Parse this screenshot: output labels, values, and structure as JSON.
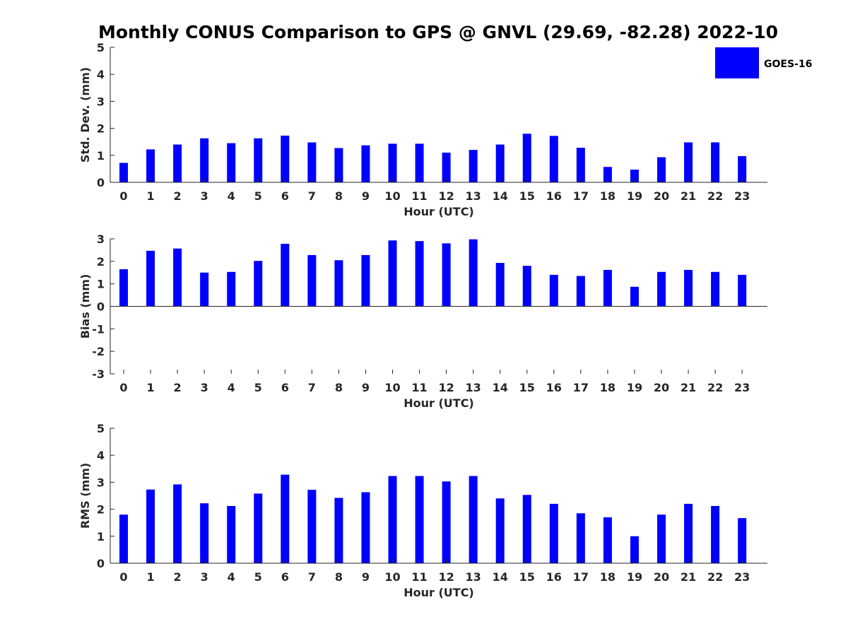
{
  "title": "Monthly CONUS Comparison to GPS @ GNVL (29.69, -82.28) 2022-10",
  "legend": {
    "label": "GOES-16",
    "color": "#0000ff",
    "placement": "top-right"
  },
  "chart_data": [
    {
      "type": "bar",
      "categories": [
        "0",
        "1",
        "2",
        "3",
        "4",
        "5",
        "6",
        "7",
        "8",
        "9",
        "10",
        "11",
        "12",
        "13",
        "14",
        "15",
        "16",
        "17",
        "18",
        "19",
        "20",
        "21",
        "22",
        "23"
      ],
      "series": [
        {
          "name": "GOES-16",
          "values": [
            0.72,
            1.22,
            1.4,
            1.63,
            1.45,
            1.63,
            1.73,
            1.48,
            1.27,
            1.37,
            1.43,
            1.43,
            1.1,
            1.2,
            1.4,
            1.8,
            1.72,
            1.28,
            0.57,
            0.47,
            0.93,
            1.48,
            1.48,
            0.97
          ]
        }
      ],
      "xlabel": "Hour (UTC)",
      "ylabel": "Std. Dev. (mm)",
      "ylim": [
        0,
        5
      ],
      "yticks": [
        "0",
        "1",
        "2",
        "3",
        "4",
        "5"
      ],
      "grid": false
    },
    {
      "type": "bar",
      "categories": [
        "0",
        "1",
        "2",
        "3",
        "4",
        "5",
        "6",
        "7",
        "8",
        "9",
        "10",
        "11",
        "12",
        "13",
        "14",
        "15",
        "16",
        "17",
        "18",
        "19",
        "20",
        "21",
        "22",
        "23"
      ],
      "series": [
        {
          "name": "GOES-16",
          "values": [
            1.65,
            2.47,
            2.57,
            1.5,
            1.53,
            2.02,
            2.78,
            2.28,
            2.05,
            2.28,
            2.93,
            2.9,
            2.8,
            2.98,
            1.93,
            1.8,
            1.4,
            1.35,
            1.62,
            0.87,
            1.53,
            1.62,
            1.53,
            1.4
          ]
        }
      ],
      "xlabel": "Hour (UTC)",
      "ylabel": "Bias (mm)",
      "ylim": [
        -3,
        3
      ],
      "yticks": [
        "-3",
        "-2",
        "-1",
        "0",
        "1",
        "2",
        "3"
      ],
      "grid": false
    },
    {
      "type": "bar",
      "categories": [
        "0",
        "1",
        "2",
        "3",
        "4",
        "5",
        "6",
        "7",
        "8",
        "9",
        "10",
        "11",
        "12",
        "13",
        "14",
        "15",
        "16",
        "17",
        "18",
        "19",
        "20",
        "21",
        "22",
        "23"
      ],
      "series": [
        {
          "name": "GOES-16",
          "values": [
            1.8,
            2.73,
            2.92,
            2.22,
            2.12,
            2.58,
            3.28,
            2.72,
            2.42,
            2.63,
            3.23,
            3.23,
            3.03,
            3.23,
            2.4,
            2.53,
            2.2,
            1.85,
            1.7,
            1.0,
            1.8,
            2.2,
            2.12,
            1.67
          ]
        }
      ],
      "xlabel": "Hour (UTC)",
      "ylabel": "RMS (mm)",
      "ylim": [
        0,
        5
      ],
      "yticks": [
        "0",
        "1",
        "2",
        "3",
        "4",
        "5"
      ],
      "grid": false
    }
  ]
}
